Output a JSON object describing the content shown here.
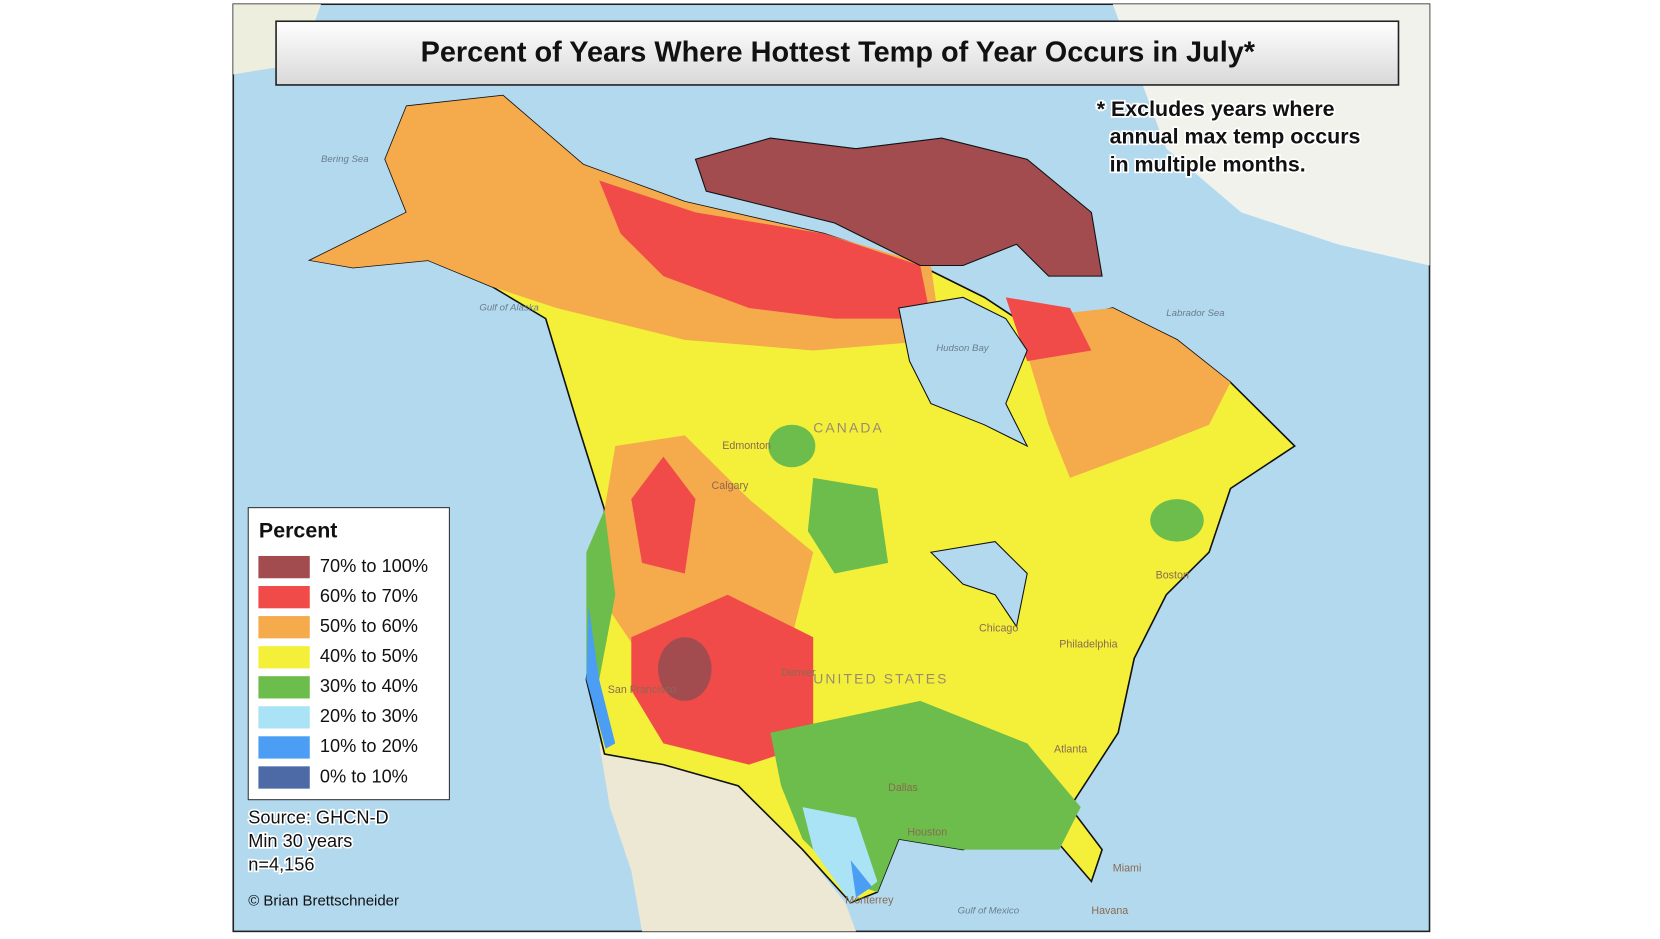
{
  "title": "Percent of Years Where Hottest Temp of Year Occurs in July*",
  "footnote": [
    "* Excludes years where",
    "annual max temp occurs",
    "in multiple months."
  ],
  "legend": {
    "title": "Percent",
    "items": [
      {
        "label": "70% to 100%",
        "color": "#a24c4f"
      },
      {
        "label": "60% to 70%",
        "color": "#f04b48"
      },
      {
        "label": "50% to 60%",
        "color": "#f5aa4c"
      },
      {
        "label": "40% to 50%",
        "color": "#f4f03a"
      },
      {
        "label": "30% to 40%",
        "color": "#6cbd4b"
      },
      {
        "label": "20% to 30%",
        "color": "#a9e3f5"
      },
      {
        "label": "10% to 20%",
        "color": "#4b9ef4"
      },
      {
        "label": "0% to 10%",
        "color": "#4d6aa6"
      }
    ]
  },
  "source": [
    "Source: GHCN-D",
    "Min 30 years",
    "n=4,156"
  ],
  "credit": "© Brian Brettschneider",
  "places": [
    "Bering Sea",
    "Gulf of Alaska",
    "Hudson Bay",
    "Labrador Sea",
    "CANADA",
    "UNITED STATES",
    "Edmonton",
    "Calgary",
    "Denver",
    "Chicago",
    "Philadelphia",
    "Boston",
    "Dallas",
    "Houston",
    "Atlanta",
    "Miami",
    "Havana",
    "Monterrey",
    "Gulf of Mexico",
    "San Francisco"
  ]
}
